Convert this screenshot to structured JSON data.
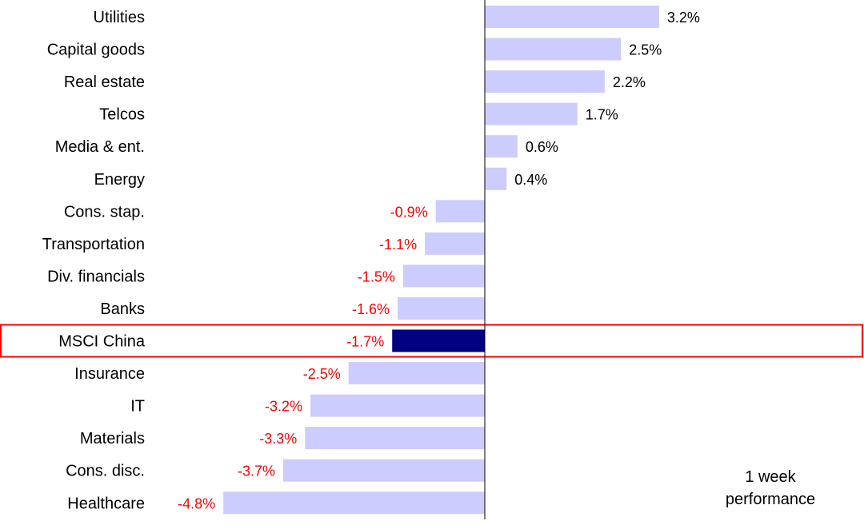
{
  "chart_data": {
    "type": "bar",
    "orientation": "horizontal",
    "categories": [
      "Utilities",
      "Capital goods",
      "Real estate",
      "Telcos",
      "Media & ent.",
      "Energy",
      "Cons. stap.",
      "Transportation",
      "Div. financials",
      "Banks",
      "MSCI China",
      "Insurance",
      "IT",
      "Materials",
      "Cons. disc.",
      "Healthcare"
    ],
    "values": [
      3.2,
      2.5,
      2.2,
      1.7,
      0.6,
      0.4,
      -0.9,
      -1.1,
      -1.5,
      -1.6,
      -1.7,
      -2.5,
      -3.2,
      -3.3,
      -3.7,
      -4.8
    ],
    "data_labels": [
      "3.2%",
      "2.5%",
      "2.2%",
      "1.7%",
      "0.6%",
      "0.4%",
      "-0.9%",
      "-1.1%",
      "-1.5%",
      "-1.6%",
      "-1.7%",
      "-2.5%",
      "-3.2%",
      "-3.3%",
      "-3.7%",
      "-4.8%"
    ],
    "highlighted_category": "MSCI China",
    "annotation": [
      "1 week",
      "performance"
    ],
    "grid": false,
    "colors": {
      "bar": "#ccccff",
      "highlight_bar": "#000080",
      "negative_label": "#ff0000",
      "positive_label": "#000000",
      "highlight_box": "#ff0000",
      "axis": "#000000"
    }
  }
}
